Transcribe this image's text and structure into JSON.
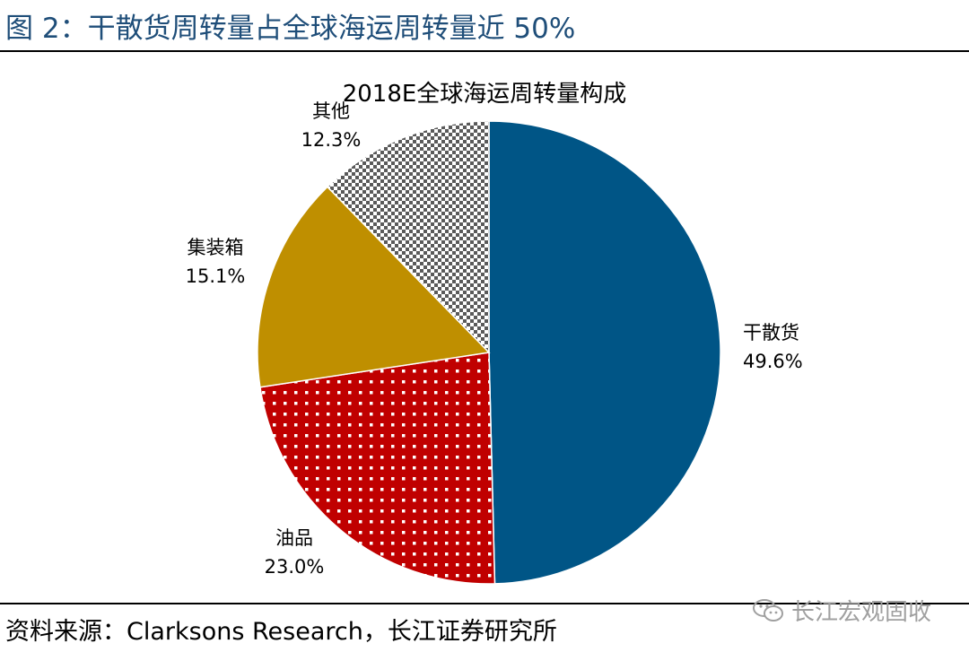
{
  "figure_title": "图 2：干散货周转量占全球海运周转量近 50%",
  "source_text": "资料来源：Clarksons Research，长江证券研究所",
  "watermark": {
    "icon": "wechat-icon",
    "text": "长江宏观固收"
  },
  "chart_data": {
    "type": "pie",
    "title": "2018E全球海运周转量构成",
    "start_angle_deg": 0,
    "direction": "clockwise",
    "slices": [
      {
        "name": "干散货",
        "value": 49.6,
        "label": "49.6%",
        "color": "#005586",
        "pattern": "solid"
      },
      {
        "name": "油品",
        "value": 23.0,
        "label": "23.0%",
        "color": "#c00000",
        "pattern": "dots"
      },
      {
        "name": "集装箱",
        "value": 15.1,
        "label": "15.1%",
        "color": "#bf8f00",
        "pattern": "solid"
      },
      {
        "name": "其他",
        "value": 12.3,
        "label": "12.3%",
        "color": "#808080",
        "pattern": "checker"
      }
    ]
  }
}
